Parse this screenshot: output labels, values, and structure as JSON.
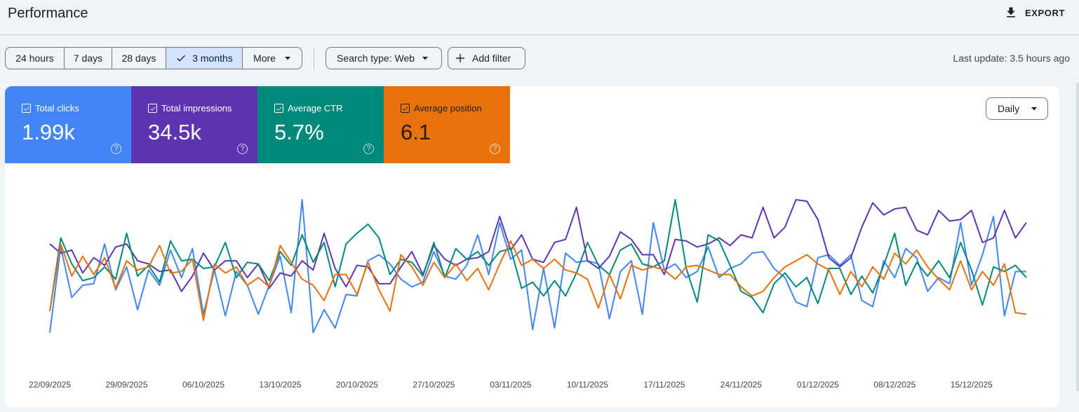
{
  "header": {
    "title": "Performance",
    "export_label": "EXPORT"
  },
  "toolbar": {
    "ranges": [
      {
        "label": "24 hours",
        "selected": false
      },
      {
        "label": "7 days",
        "selected": false
      },
      {
        "label": "28 days",
        "selected": false
      },
      {
        "label": "3 months",
        "selected": true
      },
      {
        "label": "More",
        "selected": false
      }
    ],
    "search_type": "Search type: Web",
    "add_filter": "Add filter",
    "last_update": "Last update: 3.5 hours ago"
  },
  "metrics": [
    {
      "label": "Total clicks",
      "value": "1.99k",
      "color": "#4285f4",
      "checked": true
    },
    {
      "label": "Total impressions",
      "value": "34.5k",
      "color": "#5e35b1",
      "checked": true
    },
    {
      "label": "Average CTR",
      "value": "5.7%",
      "color": "#00897b",
      "checked": true
    },
    {
      "label": "Average position",
      "value": "6.1",
      "color": "#e8710a",
      "checked": true
    }
  ],
  "granularity": "Daily",
  "chart_data": {
    "type": "line",
    "y_axis_labels_shown": false,
    "x_tick_labels": [
      "22/09/2025",
      "29/09/2025",
      "06/10/2025",
      "13/10/2025",
      "20/10/2025",
      "27/10/2025",
      "03/11/2025",
      "10/11/2025",
      "17/11/2025",
      "24/11/2025",
      "01/12/2025",
      "08/12/2025",
      "15/12/2025"
    ],
    "x": [
      "22/09/2025",
      "23/09/2025",
      "24/09/2025",
      "25/09/2025",
      "26/09/2025",
      "27/09/2025",
      "28/09/2025",
      "29/09/2025",
      "30/09/2025",
      "01/10/2025",
      "02/10/2025",
      "03/10/2025",
      "04/10/2025",
      "05/10/2025",
      "06/10/2025",
      "07/10/2025",
      "08/10/2025",
      "09/10/2025",
      "10/10/2025",
      "11/10/2025",
      "12/10/2025",
      "13/10/2025",
      "14/10/2025",
      "15/10/2025",
      "16/10/2025",
      "17/10/2025",
      "18/10/2025",
      "19/10/2025",
      "20/10/2025",
      "21/10/2025",
      "22/10/2025",
      "23/10/2025",
      "24/10/2025",
      "25/10/2025",
      "26/10/2025",
      "27/10/2025",
      "28/10/2025",
      "29/10/2025",
      "30/10/2025",
      "31/10/2025",
      "01/11/2025",
      "02/11/2025",
      "03/11/2025",
      "04/11/2025",
      "05/11/2025",
      "06/11/2025",
      "07/11/2025",
      "08/11/2025",
      "09/11/2025",
      "10/11/2025",
      "11/11/2025",
      "12/11/2025",
      "13/11/2025",
      "14/11/2025",
      "15/11/2025",
      "16/11/2025",
      "17/11/2025",
      "18/11/2025",
      "19/11/2025",
      "20/11/2025",
      "21/11/2025",
      "22/11/2025",
      "23/11/2025",
      "24/11/2025",
      "25/11/2025",
      "26/11/2025",
      "27/11/2025",
      "28/11/2025",
      "29/11/2025",
      "30/11/2025",
      "01/12/2025",
      "02/12/2025",
      "03/12/2025",
      "04/12/2025",
      "05/12/2025",
      "06/12/2025",
      "07/12/2025",
      "08/12/2025",
      "09/12/2025",
      "10/12/2025",
      "11/12/2025",
      "12/12/2025",
      "13/12/2025",
      "14/12/2025",
      "15/12/2025",
      "16/12/2025",
      "17/12/2025",
      "18/12/2025",
      "19/12/2025",
      "20/12/2025"
    ],
    "series": [
      {
        "name": "Total clicks",
        "color": "#4285f4",
        "values": [
          13,
          69,
          36,
          44,
          45,
          71,
          41,
          56,
          28,
          54,
          44,
          67,
          49,
          68,
          25,
          54,
          24,
          53,
          44,
          25,
          44,
          63,
          26,
          100,
          13,
          28,
          16,
          38,
          37,
          60,
          64,
          58,
          48,
          43,
          46,
          66,
          50,
          48,
          57,
          77,
          51,
          85,
          61,
          67,
          15,
          55,
          16,
          65,
          59,
          60,
          58,
          22,
          53,
          60,
          25,
          85,
          54,
          58,
          49,
          53,
          69,
          49,
          55,
          58,
          65,
          66,
          55,
          49,
          33,
          30,
          62,
          64,
          57,
          64,
          34,
          30,
          60,
          49,
          68,
          62,
          40,
          49,
          45,
          85,
          44,
          64,
          89,
          24,
          53,
          53
        ]
      },
      {
        "name": "Total impressions",
        "color": "#5e35b1",
        "values": [
          71,
          65,
          67,
          52,
          62,
          57,
          69,
          71,
          60,
          58,
          53,
          54,
          40,
          50,
          65,
          54,
          60,
          60,
          49,
          58,
          42,
          52,
          50,
          60,
          54,
          78,
          55,
          43,
          57,
          56,
          45,
          45,
          56,
          66,
          51,
          70,
          61,
          57,
          61,
          62,
          66,
          89,
          67,
          77,
          61,
          59,
          72,
          74,
          95,
          60,
          55,
          63,
          79,
          74,
          64,
          64,
          51,
          74,
          73,
          69,
          71,
          75,
          70,
          77,
          75,
          95,
          75,
          82,
          100,
          99,
          87,
          62,
          56,
          62,
          82,
          98,
          90,
          94,
          95,
          80,
          77,
          93,
          86,
          87,
          93,
          72,
          75,
          93,
          75,
          85
        ]
      },
      {
        "name": "Average CTR",
        "color": "#00897b",
        "values": [
          27,
          75,
          58,
          47,
          49,
          56,
          48,
          78,
          50,
          57,
          46,
          73,
          60,
          61,
          55,
          56,
          72,
          49,
          59,
          58,
          47,
          66,
          57,
          77,
          59,
          72,
          43,
          71,
          78,
          84,
          75,
          51,
          61,
          59,
          50,
          72,
          49,
          68,
          61,
          66,
          57,
          66,
          68,
          42,
          46,
          37,
          47,
          37,
          52,
          72,
          57,
          51,
          67,
          71,
          58,
          56,
          60,
          100,
          55,
          33,
          77,
          73,
          57,
          40,
          36,
          26,
          45,
          52,
          43,
          49,
          32,
          55,
          55,
          38,
          50,
          39,
          57,
          78,
          44,
          59,
          50,
          60,
          49,
          72,
          54,
          31,
          56,
          53,
          57,
          49
        ]
      },
      {
        "name": "Average position",
        "color": "#e8710a",
        "values": [
          27,
          71,
          50,
          63,
          51,
          62,
          42,
          60,
          54,
          56,
          70,
          52,
          53,
          61,
          21,
          58,
          52,
          56,
          44,
          49,
          43,
          70,
          59,
          48,
          44,
          34,
          51,
          51,
          38,
          59,
          41,
          27,
          64,
          56,
          44,
          59,
          49,
          58,
          47,
          55,
          41,
          58,
          73,
          57,
          61,
          55,
          61,
          54,
          52,
          48,
          29,
          51,
          35,
          57,
          54,
          56,
          54,
          48,
          56,
          57,
          54,
          51,
          51,
          43,
          37,
          40,
          49,
          56,
          60,
          64,
          58,
          54,
          38,
          53,
          43,
          56,
          48,
          65,
          58,
          67,
          56,
          48,
          41,
          60,
          41,
          53,
          44,
          58,
          26,
          25
        ]
      }
    ]
  }
}
